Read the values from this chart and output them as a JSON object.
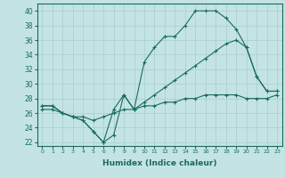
{
  "xlabel": "Humidex (Indice chaleur)",
  "bg_color": "#c4e4e4",
  "line_color": "#1a6b5a",
  "grid_color": "#a8cccc",
  "x_labels": [
    "0",
    "1",
    "2",
    "3",
    "4",
    "5",
    "6",
    "7",
    "8",
    "9",
    "10",
    "11",
    "12",
    "13",
    "14",
    "15",
    "16",
    "17",
    "18",
    "19",
    "20",
    "21",
    "22",
    "23"
  ],
  "ylim": [
    21.5,
    41
  ],
  "yticks": [
    22,
    24,
    26,
    28,
    30,
    32,
    34,
    36,
    38,
    40
  ],
  "series1_y": [
    27,
    27,
    26,
    25.5,
    25,
    23.5,
    22,
    23,
    28.5,
    26.5,
    33,
    35,
    36.5,
    36.5,
    38,
    40,
    40,
    40,
    39,
    37.5,
    35,
    31,
    29,
    29
  ],
  "series2_y": [
    27,
    27,
    26,
    25.5,
    25,
    23.5,
    22,
    26.5,
    28.5,
    26.5,
    27.5,
    28.5,
    29.5,
    30.5,
    31.5,
    32.5,
    33.5,
    34.5,
    35.5,
    36,
    35,
    31,
    29,
    29
  ],
  "series3_y": [
    26.5,
    26.5,
    26,
    25.5,
    25.5,
    25,
    25.5,
    26,
    26.5,
    26.5,
    27,
    27,
    27.5,
    27.5,
    28,
    28,
    28.5,
    28.5,
    28.5,
    28.5,
    28,
    28,
    28,
    28.5
  ],
  "marker": "+",
  "markersize": 3,
  "linewidth": 0.8
}
